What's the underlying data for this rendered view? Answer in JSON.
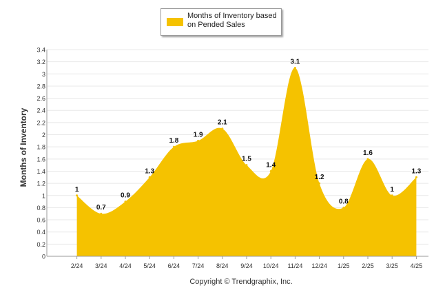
{
  "chart_data": {
    "type": "area",
    "categories": [
      "2/24",
      "3/24",
      "4/24",
      "5/24",
      "6/24",
      "7/24",
      "8/24",
      "9/24",
      "10/24",
      "11/24",
      "12/24",
      "1/25",
      "2/25",
      "3/25",
      "4/25"
    ],
    "series": [
      {
        "name": "Months of Inventory based on Pended Sales",
        "values": [
          1,
          0.7,
          0.9,
          1.3,
          1.8,
          1.9,
          2.1,
          1.5,
          1.4,
          3.1,
          1.2,
          0.8,
          1.6,
          1,
          1.3
        ],
        "color": "#f5c200"
      }
    ],
    "data_labels": [
      "1",
      "0.7",
      "0.9",
      "1.3",
      "1.8",
      "1.9",
      "2.1",
      "1.5",
      "1.4",
      "3.1",
      "1.2",
      "0.8",
      "1.6",
      "1",
      "1.3"
    ],
    "ylabel": "Months of Inventory",
    "xlabel": "",
    "ylim": [
      0,
      3.4
    ],
    "yticks": [
      "0",
      "0.2",
      "0.4",
      "0.6",
      "0.8",
      "1",
      "1.2",
      "1.4",
      "1.6",
      "1.8",
      "2",
      "2.2",
      "2.4",
      "2.6",
      "2.8",
      "3",
      "3.2",
      "3.4"
    ],
    "grid": true,
    "legend": "top-center"
  },
  "legend": {
    "label": "Months of Inventory based on Pended Sales"
  },
  "footer": {
    "copyright": "Copyright © Trendgraphix, Inc."
  }
}
